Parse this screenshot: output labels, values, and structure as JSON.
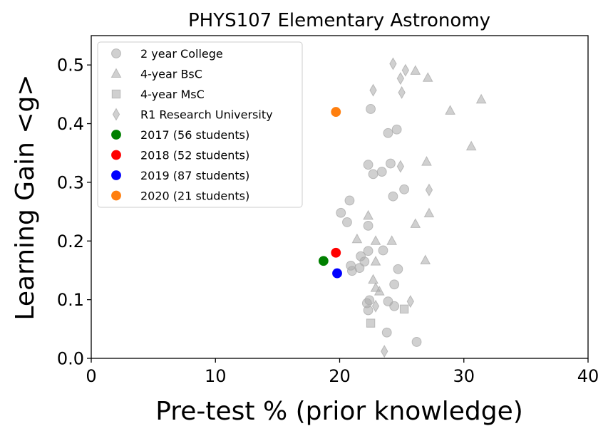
{
  "chart_data": {
    "type": "scatter",
    "title": "PHYS107 Elementary Astronomy",
    "xlabel": "Pre-test % (prior knowledge)",
    "ylabel": "Learning Gain <g>",
    "xlim": [
      0,
      40
    ],
    "ylim": [
      0,
      0.55
    ],
    "xticks": [
      0,
      10,
      20,
      30,
      40
    ],
    "yticks": [
      0.0,
      0.1,
      0.2,
      0.3,
      0.4,
      0.5
    ],
    "xtick_labels": [
      "0",
      "10",
      "20",
      "30",
      "40"
    ],
    "ytick_labels": [
      "0.0",
      "0.1",
      "0.2",
      "0.3",
      "0.4",
      "0.5"
    ],
    "grid": false,
    "legend_position": "top-left",
    "series": [
      {
        "name": "2 year College",
        "marker": "circle",
        "color": "#a9a9a9",
        "faded": true,
        "points": [
          [
            22.5,
            0.425
          ],
          [
            23.9,
            0.384
          ],
          [
            24.6,
            0.39
          ],
          [
            22.3,
            0.33
          ],
          [
            24.1,
            0.332
          ],
          [
            22.7,
            0.314
          ],
          [
            23.4,
            0.318
          ],
          [
            24.3,
            0.276
          ],
          [
            25.2,
            0.288
          ],
          [
            20.8,
            0.269
          ],
          [
            20.1,
            0.248
          ],
          [
            20.6,
            0.232
          ],
          [
            22.3,
            0.226
          ],
          [
            22.3,
            0.183
          ],
          [
            23.5,
            0.184
          ],
          [
            21.7,
            0.174
          ],
          [
            22.0,
            0.165
          ],
          [
            20.9,
            0.158
          ],
          [
            21.6,
            0.154
          ],
          [
            21.0,
            0.149
          ],
          [
            24.7,
            0.152
          ],
          [
            24.4,
            0.126
          ],
          [
            22.4,
            0.099
          ],
          [
            22.2,
            0.094
          ],
          [
            22.3,
            0.082
          ],
          [
            23.9,
            0.097
          ],
          [
            24.4,
            0.089
          ],
          [
            23.8,
            0.044
          ],
          [
            26.2,
            0.028
          ]
        ]
      },
      {
        "name": "4-year BsC",
        "marker": "triangle",
        "color": "#a9a9a9",
        "faded": true,
        "points": [
          [
            26.1,
            0.49
          ],
          [
            27.1,
            0.478
          ],
          [
            31.4,
            0.441
          ],
          [
            28.9,
            0.422
          ],
          [
            30.6,
            0.361
          ],
          [
            27.0,
            0.335
          ],
          [
            27.2,
            0.247
          ],
          [
            26.1,
            0.229
          ],
          [
            22.3,
            0.243
          ],
          [
            21.4,
            0.203
          ],
          [
            22.9,
            0.2
          ],
          [
            24.2,
            0.2
          ],
          [
            22.9,
            0.165
          ],
          [
            26.9,
            0.167
          ],
          [
            22.7,
            0.134
          ],
          [
            22.9,
            0.12
          ],
          [
            23.2,
            0.114
          ]
        ]
      },
      {
        "name": "4-year MsC",
        "marker": "square",
        "color": "#a9a9a9",
        "faded": true,
        "points": [
          [
            25.2,
            0.084
          ],
          [
            22.5,
            0.06
          ]
        ]
      },
      {
        "name": "R1 Research University",
        "marker": "thin_diamond",
        "color": "#a9a9a9",
        "faded": true,
        "points": [
          [
            24.3,
            0.502
          ],
          [
            25.3,
            0.491
          ],
          [
            24.9,
            0.477
          ],
          [
            22.7,
            0.457
          ],
          [
            25.0,
            0.453
          ],
          [
            24.9,
            0.327
          ],
          [
            27.2,
            0.287
          ],
          [
            22.9,
            0.089
          ],
          [
            25.7,
            0.097
          ],
          [
            23.6,
            0.012
          ]
        ]
      },
      {
        "name": "2017 (56 students)",
        "marker": "circle",
        "color": "#008000",
        "faded": false,
        "points": [
          [
            18.7,
            0.166
          ]
        ]
      },
      {
        "name": "2018 (52 students)",
        "marker": "circle",
        "color": "#ff0000",
        "faded": false,
        "points": [
          [
            19.7,
            0.18
          ]
        ]
      },
      {
        "name": "2019 (87 students)",
        "marker": "circle",
        "color": "#0000ff",
        "faded": false,
        "points": [
          [
            19.8,
            0.145
          ]
        ]
      },
      {
        "name": "2020 (21 students)",
        "marker": "circle",
        "color": "#ff7f0e",
        "faded": false,
        "points": [
          [
            19.7,
            0.42
          ]
        ]
      }
    ]
  }
}
